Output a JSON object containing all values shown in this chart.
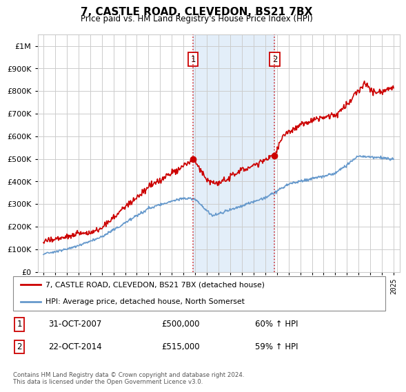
{
  "title": "7, CASTLE ROAD, CLEVEDON, BS21 7BX",
  "subtitle": "Price paid vs. HM Land Registry's House Price Index (HPI)",
  "red_label": "7, CASTLE ROAD, CLEVEDON, BS21 7BX (detached house)",
  "blue_label": "HPI: Average price, detached house, North Somerset",
  "annotation1": {
    "num": "1",
    "date": "31-OCT-2007",
    "price": "£500,000",
    "pct": "60% ↑ HPI"
  },
  "annotation2": {
    "num": "2",
    "date": "22-OCT-2014",
    "price": "£515,000",
    "pct": "59% ↑ HPI"
  },
  "vline1_x": 2007.83,
  "vline2_x": 2014.81,
  "shade_xmin": 2007.83,
  "shade_xmax": 2014.81,
  "sale1_y": 500000,
  "sale2_y": 515000,
  "ylim": [
    0,
    1050000
  ],
  "xlim": [
    1994.5,
    2025.5
  ],
  "footer": "Contains HM Land Registry data © Crown copyright and database right 2024.\nThis data is licensed under the Open Government Licence v3.0.",
  "red_color": "#cc0000",
  "blue_color": "#6699cc",
  "shade_color": "#cce0f5",
  "grid_color": "#cccccc",
  "background_color": "#ffffff",
  "yticks": [
    0,
    100000,
    200000,
    300000,
    400000,
    500000,
    600000,
    700000,
    800000,
    900000,
    1000000
  ]
}
